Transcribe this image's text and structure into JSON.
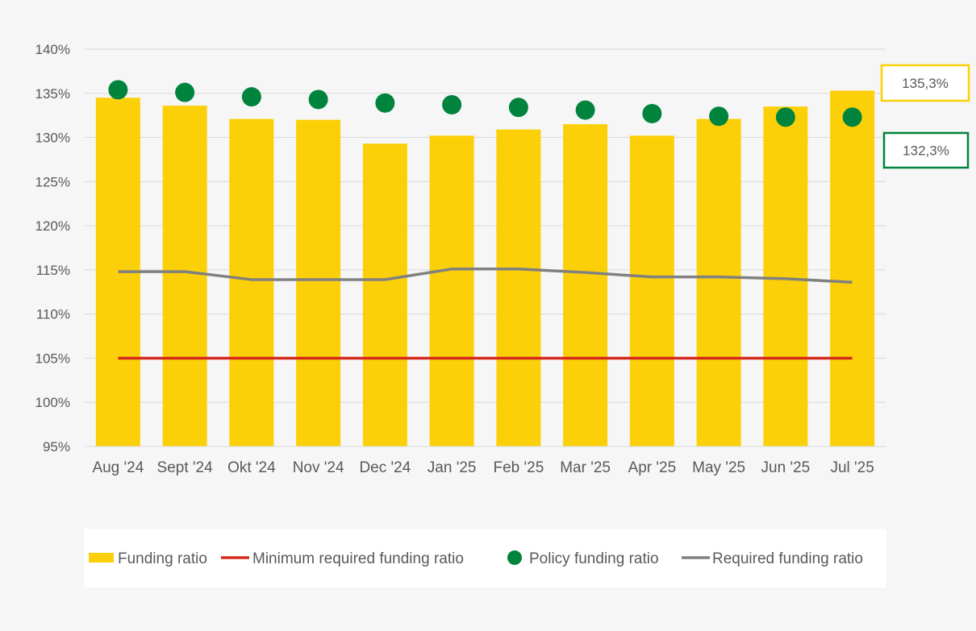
{
  "chart_data": {
    "type": "bar",
    "categories": [
      "Aug '24",
      "Sept '24",
      "Okt '24",
      "Nov '24",
      "Dec '24",
      "Jan '25",
      "Feb '25",
      "Mar '25",
      "Apr '25",
      "May '25",
      "Jun '25",
      "Jul '25"
    ],
    "y_ticks": [
      "95%",
      "100%",
      "105%",
      "110%",
      "115%",
      "120%",
      "125%",
      "130%",
      "135%",
      "140%"
    ],
    "ylim": [
      95,
      140
    ],
    "grid": true,
    "legend_position": "bottom",
    "series": [
      {
        "name": "Funding ratio",
        "kind": "bar",
        "color": "#fcd008",
        "values": [
          134.5,
          133.6,
          132.1,
          132.0,
          129.3,
          130.2,
          130.9,
          131.5,
          130.2,
          132.1,
          133.5,
          135.3
        ]
      },
      {
        "name": "Minimum required funding ratio",
        "kind": "line",
        "color": "#d52b1e",
        "values": [
          105.0,
          105.0,
          105.0,
          105.0,
          105.0,
          105.0,
          105.0,
          105.0,
          105.0,
          105.0,
          105.0,
          105.0
        ]
      },
      {
        "name": "Policy funding ratio",
        "kind": "marker",
        "color": "#00843d",
        "values": [
          135.4,
          135.1,
          134.6,
          134.3,
          133.9,
          133.7,
          133.4,
          133.1,
          132.7,
          132.4,
          132.3,
          132.3
        ]
      },
      {
        "name": "Required funding ratio",
        "kind": "line",
        "color": "#808080",
        "values": [
          114.8,
          114.8,
          113.9,
          113.9,
          113.9,
          115.1,
          115.1,
          114.7,
          114.2,
          114.2,
          114.0,
          113.6
        ]
      }
    ],
    "annotations": [
      {
        "text": "135,3%",
        "series": "Funding ratio",
        "color": "#fcd008"
      },
      {
        "text": "132,3%",
        "series": "Policy funding ratio",
        "color": "#00843d"
      }
    ]
  }
}
